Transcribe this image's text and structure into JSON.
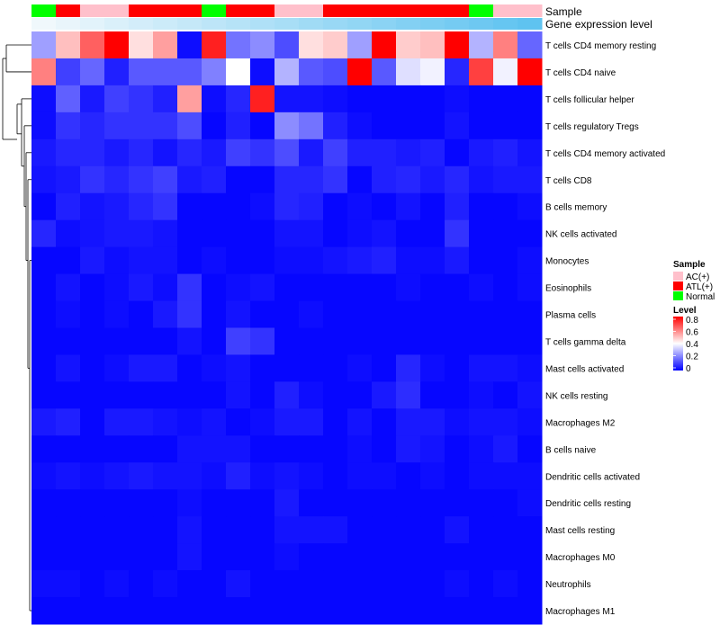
{
  "chart_data": {
    "type": "heatmap",
    "annotation_tracks": [
      "Sample",
      "Gene expression level"
    ],
    "rows": [
      "T cells CD4 memory resting",
      "T cells CD4 naive",
      "T cells follicular helper",
      "T cells regulatory  Tregs",
      "T cells CD4 memory activated",
      "T cells CD8",
      "B cells memory",
      "NK cells activated",
      "Monocytes",
      "Eosinophils",
      "Plasma cells",
      "T cells gamma delta",
      "Mast cells activated",
      "NK cells resting",
      "Macrophages M2",
      "B cells naive",
      "Dendritic cells activated",
      "Dendritic cells resting",
      "Mast cells resting",
      "Macrophages M0",
      "Neutrophils",
      "Macrophages M1"
    ],
    "sample_groups": [
      "Normal",
      "ATL(+)",
      "AC(+)",
      "AC(+)",
      "ATL(+)",
      "ATL(+)",
      "ATL(+)",
      "Normal",
      "ATL(+)",
      "ATL(+)",
      "AC(+)",
      "AC(+)",
      "ATL(+)",
      "ATL(+)",
      "ATL(+)",
      "ATL(+)",
      "ATL(+)",
      "ATL(+)",
      "Normal",
      "AC(+)",
      "AC(+)"
    ],
    "expression_level": [
      0.05,
      0.1,
      0.15,
      0.2,
      0.25,
      0.3,
      0.35,
      0.4,
      0.45,
      0.5,
      0.55,
      0.6,
      0.65,
      0.7,
      0.75,
      0.8,
      0.85,
      0.9,
      0.95,
      1.0,
      1.05
    ],
    "values": [
      [
        0.25,
        0.5,
        0.65,
        0.8,
        0.45,
        0.55,
        0.02,
        0.75,
        0.18,
        0.22,
        0.12,
        0.45,
        0.48,
        0.25,
        0.8,
        0.48,
        0.5,
        0.8,
        0.28,
        0.6,
        0.16
      ],
      [
        0.6,
        0.1,
        0.16,
        0.05,
        0.14,
        0.14,
        0.14,
        0.2,
        0.4,
        0.02,
        0.28,
        0.14,
        0.12,
        0.8,
        0.14,
        0.35,
        0.38,
        0.06,
        0.7,
        0.38,
        0.8
      ],
      [
        0.02,
        0.15,
        0.04,
        0.1,
        0.08,
        0.05,
        0.55,
        0.02,
        0.06,
        0.75,
        0.03,
        0.03,
        0.02,
        0.01,
        0.01,
        0.01,
        0.01,
        0.02,
        0.01,
        0.01,
        0.01
      ],
      [
        0.02,
        0.08,
        0.06,
        0.08,
        0.08,
        0.08,
        0.12,
        0.01,
        0.05,
        0.01,
        0.22,
        0.18,
        0.05,
        0.02,
        0.01,
        0.01,
        0.01,
        0.03,
        0.01,
        0.01,
        0.01
      ],
      [
        0.04,
        0.06,
        0.06,
        0.04,
        0.06,
        0.03,
        0.06,
        0.04,
        0.1,
        0.08,
        0.12,
        0.04,
        0.1,
        0.05,
        0.05,
        0.04,
        0.05,
        0.01,
        0.04,
        0.05,
        0.03
      ],
      [
        0.03,
        0.04,
        0.08,
        0.06,
        0.08,
        0.1,
        0.04,
        0.05,
        0.01,
        0.01,
        0.06,
        0.06,
        0.08,
        0.01,
        0.05,
        0.06,
        0.04,
        0.06,
        0.03,
        0.04,
        0.04
      ],
      [
        0.01,
        0.05,
        0.03,
        0.04,
        0.06,
        0.08,
        0.01,
        0.01,
        0.01,
        0.02,
        0.06,
        0.05,
        0.01,
        0.02,
        0.01,
        0.03,
        0.01,
        0.05,
        0.01,
        0.01,
        0.02
      ],
      [
        0.06,
        0.02,
        0.03,
        0.04,
        0.04,
        0.03,
        0.01,
        0.01,
        0.01,
        0.01,
        0.03,
        0.03,
        0.01,
        0.02,
        0.03,
        0.01,
        0.01,
        0.08,
        0.01,
        0.01,
        0.01
      ],
      [
        0.01,
        0.01,
        0.04,
        0.02,
        0.03,
        0.03,
        0.01,
        0.02,
        0.01,
        0.01,
        0.02,
        0.02,
        0.03,
        0.04,
        0.05,
        0.02,
        0.02,
        0.04,
        0.01,
        0.01,
        0.02
      ],
      [
        0.01,
        0.03,
        0.01,
        0.02,
        0.04,
        0.02,
        0.08,
        0.01,
        0.02,
        0.03,
        0.01,
        0.01,
        0.01,
        0.01,
        0.01,
        0.02,
        0.01,
        0.01,
        0.02,
        0.01,
        0.02
      ],
      [
        0.01,
        0.02,
        0.01,
        0.02,
        0.01,
        0.04,
        0.08,
        0.01,
        0.03,
        0.01,
        0.01,
        0.02,
        0.01,
        0.01,
        0.01,
        0.01,
        0.01,
        0.01,
        0.01,
        0.01,
        0.01
      ],
      [
        0.01,
        0.01,
        0.01,
        0.01,
        0.01,
        0.01,
        0.03,
        0.01,
        0.1,
        0.08,
        0.01,
        0.01,
        0.01,
        0.01,
        0.01,
        0.01,
        0.01,
        0.01,
        0.01,
        0.01,
        0.01
      ],
      [
        0.01,
        0.03,
        0.01,
        0.02,
        0.04,
        0.04,
        0.01,
        0.02,
        0.03,
        0.01,
        0.01,
        0.01,
        0.01,
        0.02,
        0.01,
        0.06,
        0.02,
        0.01,
        0.03,
        0.03,
        0.02
      ],
      [
        0.01,
        0.01,
        0.01,
        0.01,
        0.01,
        0.01,
        0.01,
        0.01,
        0.03,
        0.01,
        0.05,
        0.02,
        0.01,
        0.01,
        0.04,
        0.07,
        0.01,
        0.01,
        0.02,
        0.01,
        0.03
      ],
      [
        0.04,
        0.05,
        0.01,
        0.04,
        0.04,
        0.03,
        0.02,
        0.03,
        0.01,
        0.02,
        0.04,
        0.04,
        0.01,
        0.03,
        0.01,
        0.04,
        0.04,
        0.02,
        0.03,
        0.03,
        0.02
      ],
      [
        0.01,
        0.01,
        0.01,
        0.01,
        0.01,
        0.01,
        0.03,
        0.03,
        0.03,
        0.01,
        0.01,
        0.01,
        0.01,
        0.02,
        0.01,
        0.04,
        0.03,
        0.01,
        0.02,
        0.04,
        0.01
      ],
      [
        0.02,
        0.03,
        0.02,
        0.03,
        0.04,
        0.03,
        0.03,
        0.02,
        0.05,
        0.02,
        0.03,
        0.02,
        0.01,
        0.02,
        0.02,
        0.01,
        0.02,
        0.01,
        0.02,
        0.02,
        0.02
      ],
      [
        0.01,
        0.01,
        0.01,
        0.01,
        0.01,
        0.01,
        0.02,
        0.01,
        0.01,
        0.01,
        0.04,
        0.01,
        0.01,
        0.01,
        0.01,
        0.01,
        0.01,
        0.01,
        0.01,
        0.01,
        0.02
      ],
      [
        0.01,
        0.01,
        0.01,
        0.01,
        0.01,
        0.01,
        0.03,
        0.01,
        0.01,
        0.01,
        0.03,
        0.03,
        0.03,
        0.01,
        0.01,
        0.01,
        0.01,
        0.03,
        0.01,
        0.01,
        0.01
      ],
      [
        0.01,
        0.01,
        0.01,
        0.01,
        0.01,
        0.01,
        0.03,
        0.01,
        0.01,
        0.01,
        0.02,
        0.01,
        0.01,
        0.01,
        0.01,
        0.01,
        0.01,
        0.01,
        0.01,
        0.01,
        0.01
      ],
      [
        0.02,
        0.02,
        0.01,
        0.02,
        0.01,
        0.02,
        0.01,
        0.01,
        0.03,
        0.01,
        0.01,
        0.01,
        0.01,
        0.01,
        0.01,
        0.01,
        0.01,
        0.02,
        0.01,
        0.02,
        0.01
      ],
      [
        0.01,
        0.01,
        0.01,
        0.01,
        0.01,
        0.01,
        0.01,
        0.01,
        0.01,
        0.01,
        0.01,
        0.01,
        0.01,
        0.01,
        0.01,
        0.01,
        0.01,
        0.01,
        0.01,
        0.01,
        0.01
      ]
    ],
    "legend_sample": {
      "title": "Sample",
      "entries": [
        {
          "label": "AC(+)",
          "color": "#ffc0cb"
        },
        {
          "label": "ATL(+)",
          "color": "#ff0000"
        },
        {
          "label": "Normal",
          "color": "#00ff00"
        }
      ]
    },
    "legend_level": {
      "title": "Level",
      "ticks": [
        "0.8",
        "0.6",
        "0.4",
        "0.2",
        "0"
      ],
      "tick_values": [
        0.8,
        0.6,
        0.4,
        0.2,
        0
      ],
      "range": [
        0,
        0.8
      ],
      "colors": {
        "low": "#0000ff",
        "mid": "#ffffff",
        "high": "#ff0000"
      }
    },
    "expression_colors": {
      "low": "#f0f8fc",
      "high": "#5fc3f0"
    }
  }
}
